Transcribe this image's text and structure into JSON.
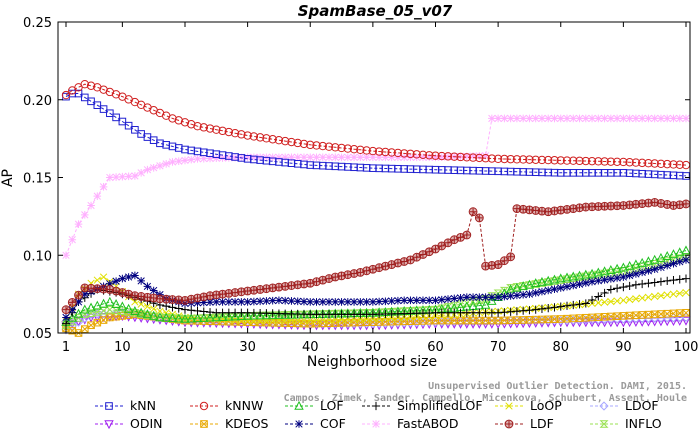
{
  "chart_data": {
    "type": "line",
    "title": "SpamBase_05_v07",
    "xlabel": "Neighborhood size",
    "ylabel": "AP",
    "xlim": [
      0,
      100
    ],
    "ylim": [
      0.05,
      0.25
    ],
    "x_ticks": [
      1,
      10,
      20,
      30,
      40,
      50,
      60,
      70,
      80,
      90,
      100
    ],
    "y_ticks": [
      0.05,
      0.1,
      0.15,
      0.2,
      0.25
    ],
    "y_tick_labels": [
      "0.05",
      "0.10",
      "0.15",
      "0.20",
      "0.25"
    ],
    "grid": false,
    "legend_position": "bottom",
    "watermark": {
      "line1": "Unsupervised Outlier Detection. DAMI, 2015.",
      "line2": "Campos, Zimek, Sander, Campello, Micenkova, Schubert, Assent, Houle"
    },
    "series": [
      {
        "name": "kNN",
        "color": "#1f1fd0",
        "marker": "square",
        "points": [
          [
            1,
            0.202
          ],
          [
            2,
            0.204
          ],
          [
            3,
            0.204
          ],
          [
            5,
            0.199
          ],
          [
            7,
            0.194
          ],
          [
            10,
            0.186
          ],
          [
            13,
            0.178
          ],
          [
            16,
            0.172
          ],
          [
            20,
            0.168
          ],
          [
            25,
            0.165
          ],
          [
            30,
            0.162
          ],
          [
            35,
            0.16
          ],
          [
            40,
            0.158
          ],
          [
            50,
            0.156
          ],
          [
            60,
            0.155
          ],
          [
            70,
            0.154
          ],
          [
            80,
            0.153
          ],
          [
            90,
            0.153
          ],
          [
            100,
            0.151
          ]
        ]
      },
      {
        "name": "kNNW",
        "color": "#d01f1f",
        "marker": "circle",
        "points": [
          [
            1,
            0.203
          ],
          [
            2,
            0.206
          ],
          [
            4,
            0.21
          ],
          [
            6,
            0.208
          ],
          [
            10,
            0.202
          ],
          [
            14,
            0.195
          ],
          [
            18,
            0.188
          ],
          [
            22,
            0.183
          ],
          [
            26,
            0.18
          ],
          [
            30,
            0.177
          ],
          [
            35,
            0.174
          ],
          [
            40,
            0.171
          ],
          [
            50,
            0.167
          ],
          [
            60,
            0.164
          ],
          [
            70,
            0.162
          ],
          [
            80,
            0.161
          ],
          [
            90,
            0.16
          ],
          [
            100,
            0.158
          ]
        ]
      },
      {
        "name": "LOF",
        "color": "#20c020",
        "marker": "triangle-up",
        "points": [
          [
            1,
            0.057
          ],
          [
            4,
            0.065
          ],
          [
            8,
            0.07
          ],
          [
            12,
            0.064
          ],
          [
            16,
            0.06
          ],
          [
            20,
            0.059
          ],
          [
            30,
            0.061
          ],
          [
            40,
            0.062
          ],
          [
            50,
            0.063
          ],
          [
            60,
            0.065
          ],
          [
            68,
            0.068
          ],
          [
            72,
            0.078
          ],
          [
            76,
            0.082
          ],
          [
            80,
            0.085
          ],
          [
            85,
            0.088
          ],
          [
            90,
            0.092
          ],
          [
            95,
            0.097
          ],
          [
            100,
            0.103
          ]
        ]
      },
      {
        "name": "SimplifiedLOF",
        "color": "#000000",
        "marker": "plus",
        "points": [
          [
            1,
            0.056
          ],
          [
            3,
            0.07
          ],
          [
            6,
            0.078
          ],
          [
            9,
            0.076
          ],
          [
            12,
            0.073
          ],
          [
            16,
            0.068
          ],
          [
            20,
            0.065
          ],
          [
            25,
            0.063
          ],
          [
            30,
            0.063
          ],
          [
            40,
            0.062
          ],
          [
            50,
            0.062
          ],
          [
            60,
            0.063
          ],
          [
            70,
            0.063
          ],
          [
            76,
            0.065
          ],
          [
            80,
            0.067
          ],
          [
            84,
            0.069
          ],
          [
            88,
            0.078
          ],
          [
            92,
            0.081
          ],
          [
            96,
            0.083
          ],
          [
            100,
            0.085
          ]
        ]
      },
      {
        "name": "LoOP",
        "color": "#e0e000",
        "marker": "cross",
        "points": [
          [
            1,
            0.058
          ],
          [
            3,
            0.075
          ],
          [
            5,
            0.082
          ],
          [
            7,
            0.086
          ],
          [
            9,
            0.08
          ],
          [
            12,
            0.07
          ],
          [
            16,
            0.064
          ],
          [
            20,
            0.06
          ],
          [
            30,
            0.058
          ],
          [
            40,
            0.058
          ],
          [
            50,
            0.059
          ],
          [
            60,
            0.061
          ],
          [
            70,
            0.064
          ],
          [
            80,
            0.067
          ],
          [
            90,
            0.071
          ],
          [
            100,
            0.076
          ]
        ]
      },
      {
        "name": "LDOF",
        "color": "#a8a8ff",
        "marker": "diamond",
        "points": [
          [
            1,
            0.052
          ],
          [
            5,
            0.062
          ],
          [
            10,
            0.063
          ],
          [
            15,
            0.06
          ],
          [
            20,
            0.058
          ],
          [
            30,
            0.057
          ],
          [
            40,
            0.056
          ],
          [
            50,
            0.056
          ],
          [
            60,
            0.057
          ],
          [
            70,
            0.058
          ],
          [
            80,
            0.058
          ],
          [
            90,
            0.059
          ],
          [
            100,
            0.06
          ]
        ]
      },
      {
        "name": "ODIN",
        "color": "#a020f0",
        "marker": "triangle-down",
        "points": [
          [
            1,
            0.055
          ],
          [
            5,
            0.06
          ],
          [
            10,
            0.061
          ],
          [
            15,
            0.059
          ],
          [
            20,
            0.057
          ],
          [
            30,
            0.056
          ],
          [
            40,
            0.055
          ],
          [
            50,
            0.055
          ],
          [
            60,
            0.056
          ],
          [
            70,
            0.056
          ],
          [
            80,
            0.057
          ],
          [
            90,
            0.057
          ],
          [
            100,
            0.058
          ]
        ]
      },
      {
        "name": "KDEOS",
        "color": "#e8a800",
        "marker": "square-x",
        "points": [
          [
            1,
            0.053
          ],
          [
            3,
            0.05
          ],
          [
            5,
            0.055
          ],
          [
            8,
            0.06
          ],
          [
            12,
            0.062
          ],
          [
            20,
            0.058
          ],
          [
            30,
            0.057
          ],
          [
            40,
            0.056
          ],
          [
            50,
            0.057
          ],
          [
            60,
            0.058
          ],
          [
            70,
            0.058
          ],
          [
            80,
            0.059
          ],
          [
            90,
            0.061
          ],
          [
            100,
            0.063
          ]
        ]
      },
      {
        "name": "COF",
        "color": "#000080",
        "marker": "star",
        "points": [
          [
            1,
            0.06
          ],
          [
            4,
            0.075
          ],
          [
            7,
            0.08
          ],
          [
            10,
            0.085
          ],
          [
            12,
            0.087
          ],
          [
            14,
            0.08
          ],
          [
            17,
            0.072
          ],
          [
            20,
            0.069
          ],
          [
            25,
            0.07
          ],
          [
            30,
            0.07
          ],
          [
            35,
            0.071
          ],
          [
            40,
            0.07
          ],
          [
            50,
            0.07
          ],
          [
            55,
            0.071
          ],
          [
            60,
            0.071
          ],
          [
            65,
            0.073
          ],
          [
            70,
            0.073
          ],
          [
            75,
            0.075
          ],
          [
            80,
            0.079
          ],
          [
            85,
            0.083
          ],
          [
            90,
            0.086
          ],
          [
            95,
            0.091
          ],
          [
            100,
            0.097
          ]
        ]
      },
      {
        "name": "FastABOD",
        "color": "#ffb0ff",
        "marker": "star",
        "points": [
          [
            1,
            0.1
          ],
          [
            2,
            0.11
          ],
          [
            3,
            0.12
          ],
          [
            4,
            0.126
          ],
          [
            6,
            0.138
          ],
          [
            8,
            0.15
          ],
          [
            12,
            0.151
          ],
          [
            14,
            0.155
          ],
          [
            18,
            0.16
          ],
          [
            22,
            0.162
          ],
          [
            30,
            0.163
          ],
          [
            40,
            0.163
          ],
          [
            50,
            0.163
          ],
          [
            60,
            0.163
          ],
          [
            68,
            0.164
          ],
          [
            69,
            0.188
          ],
          [
            80,
            0.188
          ],
          [
            90,
            0.188
          ],
          [
            100,
            0.188
          ]
        ]
      },
      {
        "name": "LDF",
        "color": "#a02020",
        "marker": "circle-plus",
        "points": [
          [
            1,
            0.065
          ],
          [
            4,
            0.079
          ],
          [
            8,
            0.078
          ],
          [
            12,
            0.074
          ],
          [
            16,
            0.072
          ],
          [
            20,
            0.071
          ],
          [
            24,
            0.074
          ],
          [
            28,
            0.076
          ],
          [
            32,
            0.078
          ],
          [
            36,
            0.08
          ],
          [
            40,
            0.082
          ],
          [
            44,
            0.086
          ],
          [
            48,
            0.089
          ],
          [
            52,
            0.093
          ],
          [
            56,
            0.097
          ],
          [
            60,
            0.104
          ],
          [
            63,
            0.11
          ],
          [
            65,
            0.113
          ],
          [
            66,
            0.128
          ],
          [
            67,
            0.124
          ],
          [
            68,
            0.093
          ],
          [
            70,
            0.094
          ],
          [
            72,
            0.099
          ],
          [
            73,
            0.13
          ],
          [
            78,
            0.128
          ],
          [
            84,
            0.131
          ],
          [
            90,
            0.132
          ],
          [
            95,
            0.134
          ],
          [
            98,
            0.132
          ],
          [
            100,
            0.133
          ]
        ]
      },
      {
        "name": "INFLO",
        "color": "#98e050",
        "marker": "hourglass",
        "points": [
          [
            1,
            0.055
          ],
          [
            4,
            0.062
          ],
          [
            8,
            0.065
          ],
          [
            12,
            0.063
          ],
          [
            16,
            0.06
          ],
          [
            20,
            0.059
          ],
          [
            30,
            0.061
          ],
          [
            40,
            0.062
          ],
          [
            50,
            0.063
          ],
          [
            60,
            0.065
          ],
          [
            68,
            0.072
          ],
          [
            72,
            0.079
          ],
          [
            80,
            0.084
          ],
          [
            90,
            0.09
          ],
          [
            100,
            0.099
          ]
        ]
      }
    ]
  }
}
